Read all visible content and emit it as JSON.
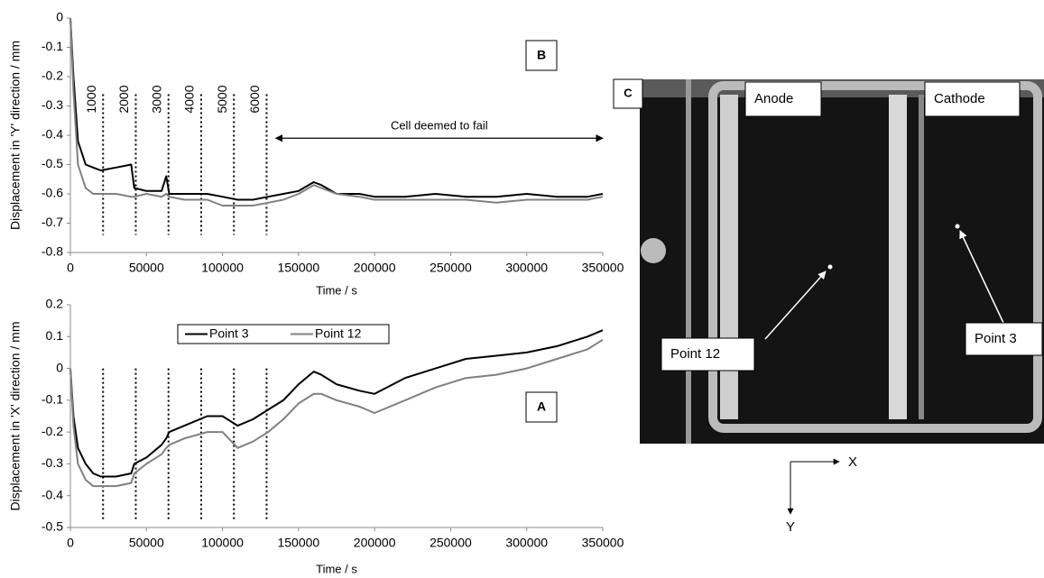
{
  "chart_data": [
    {
      "type": "line",
      "y_label": "Displacement in 'Y' direction / mm",
      "x_label": "Time / s",
      "panel_label": "B",
      "x": [
        0,
        2000,
        5000,
        10000,
        15000,
        20000,
        30000,
        40000,
        42000,
        50000,
        60000,
        63000,
        65000,
        75000,
        90000,
        100000,
        110000,
        120000,
        130000,
        140000,
        150000,
        160000,
        165000,
        175000,
        190000,
        200000,
        220000,
        240000,
        260000,
        280000,
        300000,
        320000,
        340000,
        350000
      ],
      "series": [
        {
          "name": "Point 3",
          "color": "#000000",
          "values": [
            0,
            -0.2,
            -0.42,
            -0.5,
            -0.51,
            -0.52,
            -0.51,
            -0.5,
            -0.58,
            -0.59,
            -0.59,
            -0.54,
            -0.6,
            -0.6,
            -0.6,
            -0.61,
            -0.62,
            -0.62,
            -0.61,
            -0.6,
            -0.59,
            -0.56,
            -0.57,
            -0.6,
            -0.6,
            -0.61,
            -0.61,
            -0.6,
            -0.61,
            -0.61,
            -0.6,
            -0.61,
            -0.61,
            -0.6
          ]
        },
        {
          "name": "Point 12",
          "color": "#808080",
          "values": [
            0,
            -0.25,
            -0.5,
            -0.58,
            -0.6,
            -0.6,
            -0.6,
            -0.61,
            -0.61,
            -0.6,
            -0.61,
            -0.6,
            -0.61,
            -0.62,
            -0.62,
            -0.64,
            -0.64,
            -0.64,
            -0.63,
            -0.62,
            -0.6,
            -0.57,
            -0.58,
            -0.6,
            -0.61,
            -0.62,
            -0.62,
            -0.62,
            -0.62,
            -0.63,
            -0.62,
            -0.62,
            -0.62,
            -0.61
          ]
        }
      ],
      "xlim": [
        0,
        350000
      ],
      "xticks": [
        0,
        50000,
        100000,
        150000,
        200000,
        250000,
        300000,
        350000
      ],
      "ylim": [
        -0.8,
        0
      ],
      "yticks": [
        0,
        -0.1,
        -0.2,
        -0.3,
        -0.4,
        -0.5,
        -0.6,
        -0.7,
        -0.8
      ],
      "markers": {
        "x": [
          21500,
          43000,
          64500,
          86000,
          107500,
          129000
        ],
        "labels": [
          "1000",
          "2000",
          "3000",
          "4000",
          "5000",
          "6000"
        ],
        "yrange": [
          -0.26,
          -0.74
        ]
      },
      "annotation": {
        "text": "Cell deemed to fail",
        "x": [
          135000,
          350000
        ],
        "y": -0.41
      }
    },
    {
      "type": "line",
      "y_label": "Displacement in 'X' direction / mm",
      "x_label": "Time / s",
      "panel_label": "A",
      "legend": "top",
      "x": [
        0,
        2000,
        5000,
        10000,
        15000,
        20000,
        30000,
        40000,
        42000,
        50000,
        60000,
        63000,
        65000,
        75000,
        90000,
        100000,
        110000,
        120000,
        130000,
        140000,
        150000,
        160000,
        165000,
        175000,
        190000,
        200000,
        220000,
        240000,
        260000,
        280000,
        300000,
        320000,
        340000,
        350000
      ],
      "series": [
        {
          "name": "Point 3",
          "color": "#000000",
          "values": [
            0,
            -0.15,
            -0.25,
            -0.3,
            -0.33,
            -0.34,
            -0.34,
            -0.33,
            -0.3,
            -0.28,
            -0.24,
            -0.22,
            -0.2,
            -0.18,
            -0.15,
            -0.15,
            -0.18,
            -0.16,
            -0.13,
            -0.1,
            -0.05,
            -0.01,
            -0.02,
            -0.05,
            -0.07,
            -0.08,
            -0.03,
            0,
            0.03,
            0.04,
            0.05,
            0.07,
            0.1,
            0.12
          ]
        },
        {
          "name": "Point 12",
          "color": "#808080",
          "values": [
            0,
            -0.18,
            -0.3,
            -0.35,
            -0.37,
            -0.37,
            -0.37,
            -0.36,
            -0.33,
            -0.3,
            -0.27,
            -0.25,
            -0.24,
            -0.22,
            -0.2,
            -0.2,
            -0.25,
            -0.23,
            -0.2,
            -0.16,
            -0.11,
            -0.08,
            -0.08,
            -0.1,
            -0.12,
            -0.14,
            -0.1,
            -0.06,
            -0.03,
            -0.02,
            0,
            0.03,
            0.06,
            0.09
          ]
        }
      ],
      "xlim": [
        0,
        350000
      ],
      "xticks": [
        0,
        50000,
        100000,
        150000,
        200000,
        250000,
        300000,
        350000
      ],
      "ylim": [
        -0.5,
        0.2
      ],
      "yticks": [
        0.2,
        0.1,
        0,
        -0.1,
        -0.2,
        -0.3,
        -0.4,
        -0.5
      ],
      "markers": {
        "x": [
          21500,
          43000,
          64500,
          86000,
          107500,
          129000
        ],
        "yrange": [
          0,
          -0.48
        ]
      }
    }
  ],
  "photo": {
    "panel_label": "C",
    "anode": "Anode",
    "cathode": "Cathode",
    "point_12": "Point 12",
    "point_3": "Point 3",
    "axis_x": "X",
    "axis_y": "Y"
  }
}
